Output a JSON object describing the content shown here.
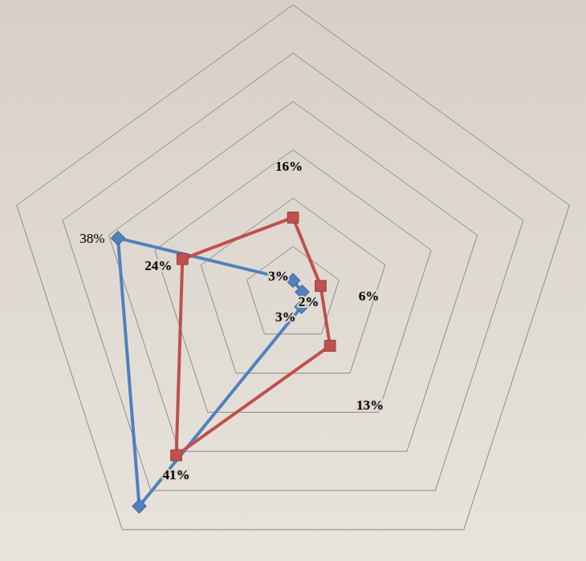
{
  "chart_data": {
    "type": "radar",
    "categories": [
      null,
      null,
      null,
      null,
      null
    ],
    "ylim": [
      0,
      60
    ],
    "yticks": [
      0,
      10,
      20,
      30,
      40,
      50,
      60
    ],
    "grid": true,
    "tick_labels": false,
    "data_labels": true,
    "series": [
      {
        "color": "#4f81bd",
        "marker": "diamond",
        "values": [
          3,
          2,
          3,
          54,
          38
        ],
        "value_labels": [
          "3%",
          "2%",
          "3%",
          null,
          "38%"
        ]
      },
      {
        "color": "#c0504d",
        "marker": "square",
        "values": [
          16,
          6,
          13,
          41,
          24
        ],
        "value_labels": [
          "16%",
          "6%",
          "13%",
          "41%",
          "24%"
        ]
      }
    ]
  }
}
